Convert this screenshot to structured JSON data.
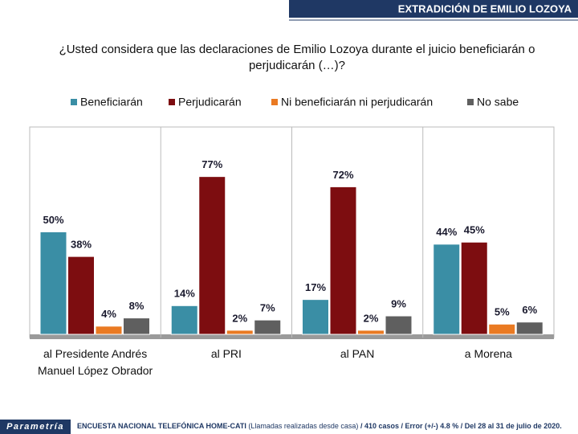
{
  "header": {
    "title": "EXTRADICIÓN DE EMILIO LOZOYA"
  },
  "chart_data": {
    "type": "bar",
    "title": "¿Usted considera que las declaraciones de Emilio Lozoya durante el juicio beneficiarán o perjudicarán (…)?",
    "categories": [
      "al Presidente Andrés Manuel López Obrador",
      "al PRI",
      "al PAN",
      "a Morena"
    ],
    "series": [
      {
        "name": "Beneficiarán",
        "color": "#3a8ea5",
        "values": [
          50,
          14,
          17,
          44
        ],
        "value_labels": [
          "50%",
          "14%",
          "17%",
          "44%"
        ]
      },
      {
        "name": "Perjudicarán",
        "color": "#7d0d10",
        "values": [
          38,
          77,
          72,
          45
        ],
        "value_labels": [
          "38%",
          "77%",
          "72%",
          "45%"
        ]
      },
      {
        "name": "Ni beneficiarán ni perjudicarán",
        "color": "#ea7a22",
        "values": [
          4,
          2,
          2,
          5
        ],
        "value_labels": [
          "4%",
          "2%",
          "2%",
          "5%"
        ]
      },
      {
        "name": "No sabe",
        "color": "#5f5f5f",
        "values": [
          8,
          7,
          9,
          6
        ],
        "value_labels": [
          "8%",
          "7%",
          "9%",
          "6%"
        ]
      }
    ]
  },
  "footer": {
    "brand": "Parametría",
    "survey": "ENCUESTA NACIONAL TELEFÓNICA HOME-CATI",
    "note": "(Llamadas realizadas desde casa)",
    "details": "/ 410 casos / Error (+/-) 4.8 % / Del 28 al 31 de julio de 2020."
  }
}
